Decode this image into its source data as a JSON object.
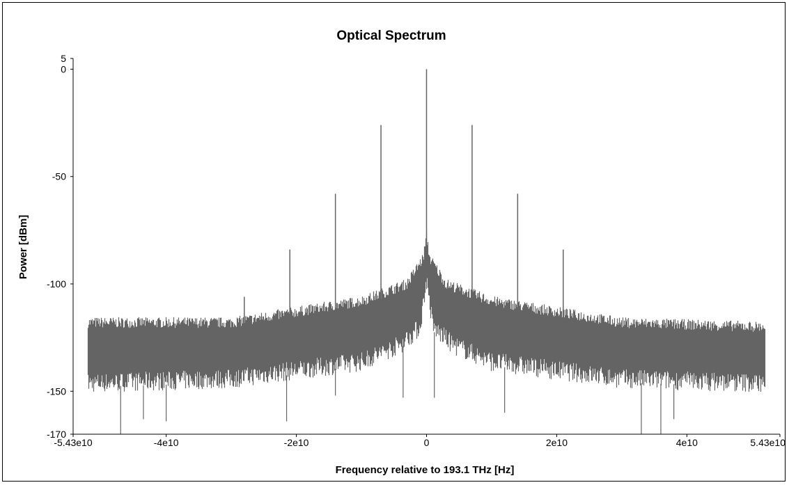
{
  "chart_data": {
    "type": "line",
    "title": "Optical Spectrum",
    "xlabel": "Frequency relative to 193.1 THz [Hz]",
    "ylabel": "Power [dBm]",
    "xlim": [
      -54300000000.0,
      54300000000.0
    ],
    "ylim": [
      -170,
      5
    ],
    "x_ticks": [
      {
        "value": -54300000000.0,
        "label": "-5.43e10"
      },
      {
        "value": -40000000000.0,
        "label": "-4e10"
      },
      {
        "value": -20000000000.0,
        "label": "-2e10"
      },
      {
        "value": 0,
        "label": "0"
      },
      {
        "value": 20000000000.0,
        "label": "2e10"
      },
      {
        "value": 40000000000.0,
        "label": "4e10"
      },
      {
        "value": 54300000000.0,
        "label": "5.43e10"
      }
    ],
    "y_ticks": [
      {
        "value": 5,
        "label": "5"
      },
      {
        "value": 0,
        "label": "0"
      },
      {
        "value": -50,
        "label": "-50"
      },
      {
        "value": -100,
        "label": "-100"
      },
      {
        "value": -150,
        "label": "-150"
      },
      {
        "value": -170,
        "label": "-170"
      }
    ],
    "grid": false,
    "series_color": "#646464",
    "noise_floor": {
      "x_range": [
        -52000000000.0,
        52000000000.0
      ],
      "upper_envelope_dBm": [
        [
          -52000000000.0,
          -118
        ],
        [
          -30000000000.0,
          -118
        ],
        [
          -10000000000.0,
          -108
        ],
        [
          -3000000000.0,
          -100
        ],
        [
          -500000000.0,
          -88
        ],
        [
          0,
          -78
        ],
        [
          500000000.0,
          -88
        ],
        [
          3000000000.0,
          -100
        ],
        [
          10000000000.0,
          -108
        ],
        [
          30000000000.0,
          -118
        ],
        [
          52000000000.0,
          -120
        ]
      ],
      "lower_envelope_dBm": [
        [
          -52000000000.0,
          -148
        ],
        [
          -30000000000.0,
          -146
        ],
        [
          -10000000000.0,
          -138
        ],
        [
          -4000000000.0,
          -130
        ],
        [
          -1000000000.0,
          -122
        ],
        [
          0,
          -100
        ],
        [
          1000000000.0,
          -122
        ],
        [
          4000000000.0,
          -130
        ],
        [
          10000000000.0,
          -138
        ],
        [
          30000000000.0,
          -146
        ],
        [
          52000000000.0,
          -148
        ]
      ]
    },
    "spectral_lines": [
      {
        "x": 0,
        "y": 0
      },
      {
        "x": -7000000000.0,
        "y": -26
      },
      {
        "x": 7000000000.0,
        "y": -26
      },
      {
        "x": -14000000000.0,
        "y": -58
      },
      {
        "x": 14000000000.0,
        "y": -58
      },
      {
        "x": -21000000000.0,
        "y": -84
      },
      {
        "x": 21000000000.0,
        "y": -84
      },
      {
        "x": -28000000000.0,
        "y": -106
      }
    ],
    "dips": [
      {
        "x": -47000000000.0,
        "y": -170
      },
      {
        "x": -43500000000.0,
        "y": -163
      },
      {
        "x": -40000000000.0,
        "y": -164
      },
      {
        "x": -21500000000.0,
        "y": -164
      },
      {
        "x": -14000000000.0,
        "y": -152
      },
      {
        "x": -3600000000.0,
        "y": -153
      },
      {
        "x": 1200000000.0,
        "y": -153
      },
      {
        "x": 12000000000.0,
        "y": -160
      },
      {
        "x": 33000000000.0,
        "y": -170
      },
      {
        "x": 36000000000.0,
        "y": -170
      },
      {
        "x": 38000000000.0,
        "y": -163
      }
    ]
  }
}
